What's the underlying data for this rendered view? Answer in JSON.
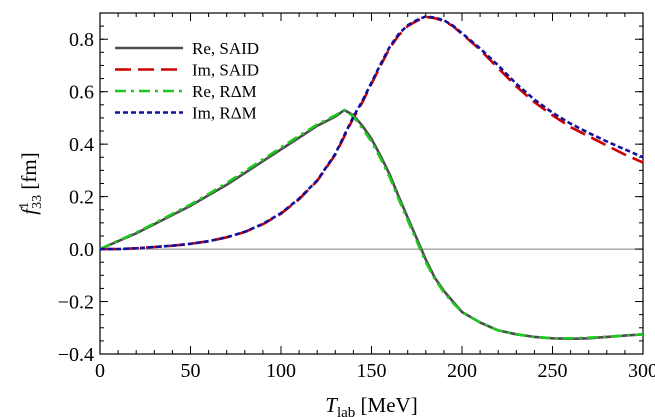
{
  "chart_data": {
    "type": "line",
    "xlabel": {
      "main": "T",
      "sub": "lab",
      "unit": " [MeV]"
    },
    "ylabel": {
      "main": "f",
      "sup": "1",
      "sub": "33",
      "unit": " [fm]"
    },
    "xlim": [
      0,
      300
    ],
    "ylim": [
      -0.4,
      0.9
    ],
    "xticks": [
      0,
      50,
      100,
      150,
      200,
      250,
      300
    ],
    "xtick_labels": [
      "0",
      "50",
      "100",
      "150",
      "200",
      "250",
      "300"
    ],
    "yticks": [
      -0.4,
      -0.2,
      0.0,
      0.2,
      0.4,
      0.6,
      0.8
    ],
    "ytick_labels": [
      "−0.4",
      "−0.2",
      "0.0",
      "0.2",
      "0.4",
      "0.6",
      "0.8"
    ],
    "zero_line": true,
    "grid": false,
    "legend_position": "top-left",
    "x": [
      0,
      10,
      20,
      30,
      40,
      50,
      60,
      70,
      80,
      90,
      100,
      110,
      120,
      130,
      135,
      140,
      145,
      150,
      155,
      160,
      165,
      170,
      175,
      180,
      185,
      190,
      195,
      200,
      210,
      220,
      230,
      240,
      250,
      260,
      270,
      280,
      290,
      300
    ],
    "series": [
      {
        "name": "Re, SAID",
        "color": "#4d4d4d",
        "dash": "solid",
        "values": [
          0.0,
          0.03,
          0.06,
          0.095,
          0.13,
          0.165,
          0.205,
          0.245,
          0.29,
          0.335,
          0.38,
          0.425,
          0.47,
          0.505,
          0.53,
          0.51,
          0.47,
          0.42,
          0.355,
          0.285,
          0.2,
          0.12,
          0.04,
          -0.04,
          -0.11,
          -0.16,
          -0.2,
          -0.24,
          -0.28,
          -0.31,
          -0.325,
          -0.335,
          -0.34,
          -0.342,
          -0.34,
          -0.335,
          -0.33,
          -0.325
        ]
      },
      {
        "name": "Im, SAID",
        "color": "#cc0000",
        "dash": "longdash",
        "values": [
          0.0,
          0.0,
          0.003,
          0.008,
          0.013,
          0.02,
          0.03,
          0.045,
          0.065,
          0.095,
          0.135,
          0.19,
          0.26,
          0.36,
          0.43,
          0.5,
          0.56,
          0.63,
          0.7,
          0.765,
          0.815,
          0.85,
          0.87,
          0.885,
          0.88,
          0.87,
          0.85,
          0.82,
          0.76,
          0.69,
          0.62,
          0.56,
          0.51,
          0.465,
          0.43,
          0.395,
          0.36,
          0.33
        ]
      },
      {
        "name": "Re, RΔM",
        "color": "#1ec81e",
        "dash": "dashdot",
        "values": [
          0.0,
          0.032,
          0.063,
          0.098,
          0.134,
          0.17,
          0.21,
          0.252,
          0.297,
          0.342,
          0.387,
          0.432,
          0.475,
          0.51,
          0.53,
          0.505,
          0.46,
          0.41,
          0.345,
          0.275,
          0.19,
          0.11,
          0.03,
          -0.05,
          -0.115,
          -0.165,
          -0.205,
          -0.24,
          -0.28,
          -0.31,
          -0.325,
          -0.335,
          -0.34,
          -0.34,
          -0.338,
          -0.334,
          -0.33,
          -0.325
        ]
      },
      {
        "name": "Im, RΔM",
        "color": "#1010a0",
        "dash": "dotted",
        "values": [
          0.0,
          0.0,
          0.003,
          0.008,
          0.013,
          0.02,
          0.03,
          0.045,
          0.066,
          0.096,
          0.137,
          0.192,
          0.262,
          0.363,
          0.435,
          0.505,
          0.565,
          0.635,
          0.705,
          0.77,
          0.82,
          0.853,
          0.873,
          0.887,
          0.882,
          0.872,
          0.852,
          0.823,
          0.765,
          0.7,
          0.63,
          0.57,
          0.52,
          0.478,
          0.443,
          0.41,
          0.38,
          0.35
        ]
      }
    ]
  }
}
